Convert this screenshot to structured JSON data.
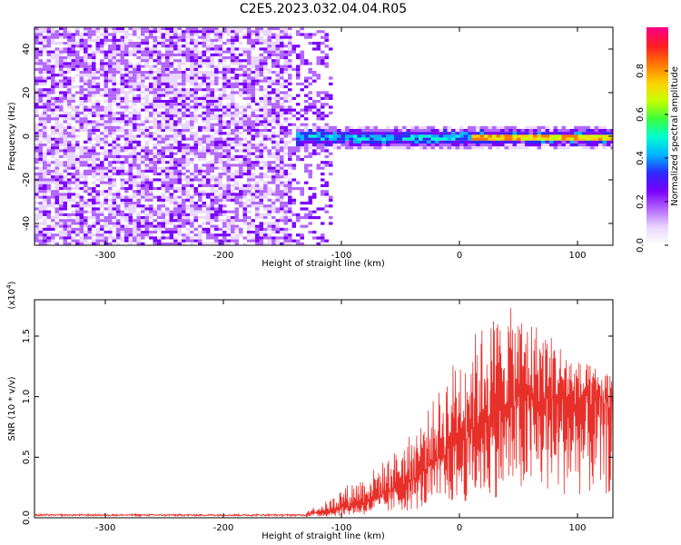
{
  "title": "C2E5.2023.032.04.04.R05",
  "colors": {
    "snr_line": "#e8302b",
    "cmap": [
      "#ffffff",
      "#e9d6ff",
      "#b266ff",
      "#7a00ff",
      "#2b2bff",
      "#00b4ff",
      "#00ffd0",
      "#3cff3c",
      "#c8ff00",
      "#ffd000",
      "#ff7a00",
      "#ff2020",
      "#ff0080"
    ]
  },
  "chart_data": [
    {
      "type": "heatmap",
      "name": "spectrogram",
      "xlabel": "Height of straight line (km)",
      "ylabel": "Frequency (Hz)",
      "xlim": [
        -360,
        130
      ],
      "ylim": [
        -50,
        50
      ],
      "xticks": [
        -300,
        -200,
        -100,
        0,
        100
      ],
      "xtick_labels": [
        "-300",
        "-200",
        "-100",
        "0",
        "100"
      ],
      "yticks": [
        -40,
        -20,
        0,
        20,
        40
      ],
      "ytick_labels": [
        "-40",
        "-20",
        "0",
        "20",
        "40"
      ],
      "colorbar": {
        "label": "Normalized spectral amplitude",
        "range": [
          0.0,
          1.0
        ],
        "ticks": [
          0.0,
          0.2,
          0.4,
          0.6,
          0.8
        ],
        "tick_labels": [
          "0.0",
          "0.2",
          "0.4",
          "0.6",
          "0.8"
        ]
      },
      "regions": [
        {
          "x_range": [
            -360,
            -145
          ],
          "freq_range": [
            -50,
            50
          ],
          "amplitude": 0.15,
          "description_level": "noise"
        },
        {
          "x_range": [
            -145,
            -110
          ],
          "freq_range": [
            -50,
            50
          ],
          "amplitude": 0.08,
          "description_level": "fading noise"
        },
        {
          "x_range": [
            -140,
            130
          ],
          "freq_range": [
            -5,
            5
          ],
          "amplitude": 0.45,
          "description_level": "signal band"
        },
        {
          "x_range": [
            10,
            130
          ],
          "freq_range": [
            -0.8,
            0.8
          ],
          "amplitude": 0.85,
          "description_level": "strong signal"
        }
      ]
    },
    {
      "type": "line",
      "name": "snr",
      "xlabel": "Height of straight line (km)",
      "ylabel": "SNR (10 * v/v)",
      "y_multiplier_label": "(x10",
      "y_multiplier_exp": "4",
      "xlim": [
        -360,
        130
      ],
      "ylim": [
        0,
        1.8
      ],
      "xticks": [
        -300,
        -200,
        -100,
        0,
        100
      ],
      "xtick_labels": [
        "-300",
        "-200",
        "-100",
        "0",
        "100"
      ],
      "yticks": [
        0,
        0.5,
        1.0,
        1.5
      ],
      "ytick_labels": [
        "0.0",
        "0.5",
        "1.0",
        "1.5"
      ],
      "envelope": {
        "x": [
          -360,
          -150,
          -130,
          -110,
          -100,
          -80,
          -60,
          -40,
          -20,
          0,
          20,
          40,
          60,
          80,
          100,
          130
        ],
        "mean": [
          0.02,
          0.02,
          0.03,
          0.05,
          0.08,
          0.12,
          0.2,
          0.3,
          0.45,
          0.6,
          0.75,
          0.9,
          0.95,
          0.95,
          0.92,
          0.9
        ],
        "peak": [
          0.03,
          0.03,
          0.06,
          0.15,
          0.25,
          0.35,
          0.5,
          0.7,
          1.0,
          1.4,
          1.6,
          1.75,
          1.65,
          1.5,
          1.3,
          1.2
        ]
      }
    }
  ]
}
